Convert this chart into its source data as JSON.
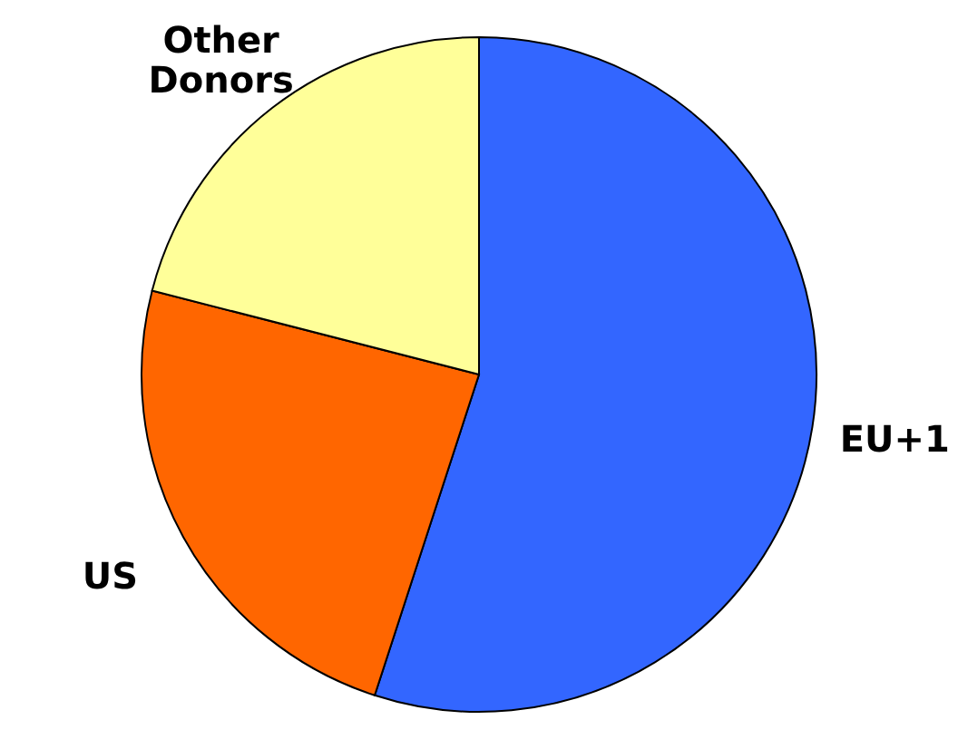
{
  "chart_data": {
    "type": "pie",
    "categories": [
      "EU+1",
      "US",
      "Other Donors"
    ],
    "values": [
      55,
      24,
      21
    ],
    "colors": [
      "#3366ff",
      "#ff6600",
      "#ffff99"
    ]
  }
}
